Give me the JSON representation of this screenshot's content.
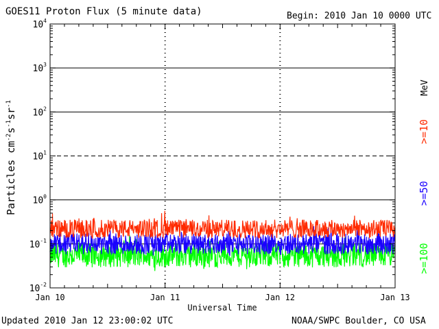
{
  "header": {
    "title": "GOES11 Proton Flux (5 minute data)",
    "begin": "Begin: 2010 Jan 10 0000 UTC"
  },
  "footer": {
    "updated": "Updated 2010 Jan 12 23:00:02 UTC",
    "credit": "NOAA/SWPC Boulder, CO USA"
  },
  "colors": {
    "ge10": "#ff2a00",
    "ge50": "#1a00ff",
    "ge100": "#00ff00",
    "axis": "#000000"
  },
  "chart_data": {
    "type": "line",
    "title": "GOES11 Proton Flux (5 minute data)",
    "xlabel": "Universal Time",
    "ylabel_base": "Particles cm",
    "ylabel_sup1": "-2",
    "ylabel_mid1": "s",
    "ylabel_sup2": "-1",
    "ylabel_mid2": "sr",
    "ylabel_sup3": "-1",
    "y_scale": "log",
    "ylim": [
      0.01,
      10000
    ],
    "xlim": [
      "2010-01-10 00:00",
      "2010-01-13 00:00"
    ],
    "x_ticks": [
      "Jan 10",
      "Jan 11",
      "Jan 12",
      "Jan 13"
    ],
    "y_ticks": [
      {
        "base": "10",
        "exp": "-2"
      },
      {
        "base": "10",
        "exp": "-1"
      },
      {
        "base": "10",
        "exp": "0"
      },
      {
        "base": "10",
        "exp": "1"
      },
      {
        "base": "10",
        "exp": "2"
      },
      {
        "base": "10",
        "exp": "3"
      },
      {
        "base": "10",
        "exp": "4"
      }
    ],
    "unit_label": "MeV",
    "series": [
      {
        "name": ">=10",
        "color": "#ff2a00",
        "typical_flux": 0.22
      },
      {
        "name": ">=50",
        "color": "#1a00ff",
        "typical_flux": 0.1
      },
      {
        "name": ">=100",
        "color": "#00ff00",
        "typical_flux": 0.055
      }
    ]
  }
}
